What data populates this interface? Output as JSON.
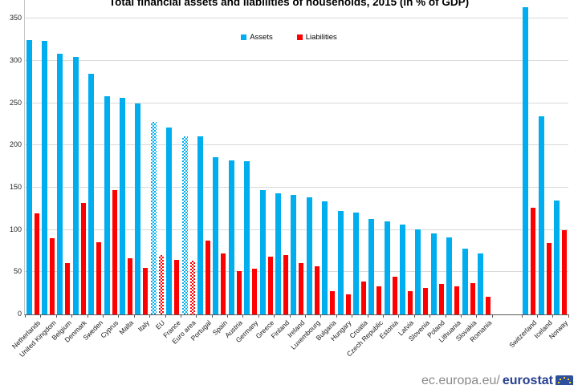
{
  "title": "Total financial assets and liabilities of households, 2015 (in % of GDP)",
  "colors": {
    "assets": "#00AEEF",
    "liabilities": "#FF0000",
    "gridline": "#D9D9D9",
    "axis": "#595959"
  },
  "footer": {
    "url_prefix": "ec.europa.eu/",
    "url_bold": "eurostat",
    "logo_icon": "eu-flag-logo"
  },
  "chart_data": {
    "type": "bar",
    "title": "Total financial assets and liabilities of households, 2015 (in % of GDP)",
    "xlabel": "",
    "ylabel": "",
    "y_ticks": [
      0,
      50,
      100,
      150,
      200,
      250,
      300,
      350
    ],
    "ylim": [
      0,
      372
    ],
    "grid": true,
    "legend_position": "top-center",
    "categories": [
      "Netherlands",
      "United Kingdom",
      "Belgium",
      "Denmark",
      "Sweden",
      "Cyprus",
      "Malta",
      "Italy",
      "EU",
      "France",
      "Euro area",
      "Portugal",
      "Spain",
      "Austria",
      "Germany",
      "Greece",
      "Finland",
      "Ireland",
      "Luxembourg",
      "Bulgaria",
      "Hungary",
      "Croatia",
      "Czech Republic",
      "Estonia",
      "Latvia",
      "Slovenia",
      "Poland",
      "Lithuania",
      "Slovakia",
      "Romania",
      "Switzerland",
      "Iceland",
      "Norway"
    ],
    "series": [
      {
        "name": "Assets",
        "color": "#00AEEF",
        "values": [
          325,
          324,
          308,
          305,
          285,
          258,
          256,
          250,
          228,
          221,
          211,
          211,
          186,
          182,
          181,
          147,
          143,
          141,
          139,
          134,
          122,
          121,
          113,
          110,
          106,
          101,
          96,
          91,
          78,
          72,
          363,
          234,
          135
        ]
      },
      {
        "name": "Liabilities",
        "color": "#FF0000",
        "values": [
          120,
          90,
          61,
          132,
          85,
          147,
          66,
          55,
          70,
          65,
          64,
          87,
          72,
          51,
          54,
          68,
          70,
          61,
          57,
          28,
          24,
          39,
          33,
          45,
          28,
          31,
          36,
          33,
          37,
          21,
          126,
          84,
          100
        ]
      }
    ],
    "hatched_categories": [
      "EU",
      "Euro area"
    ],
    "gap_after_category": "Romania"
  }
}
